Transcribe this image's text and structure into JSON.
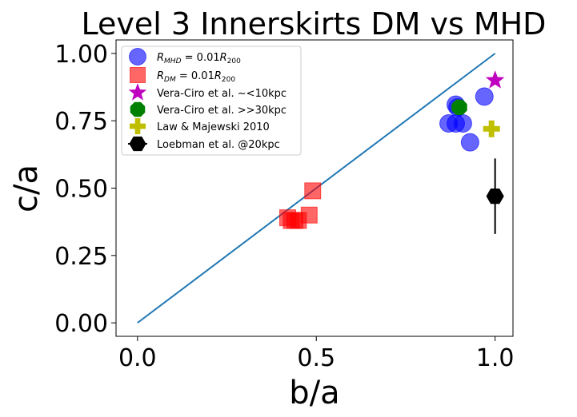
{
  "chart_data": {
    "type": "scatter",
    "title": "Level 3 Innerskirts DM vs MHD",
    "xlabel": "b/a",
    "ylabel": "c/a",
    "xlim": [
      -0.06,
      1.05
    ],
    "ylim": [
      -0.05,
      1.05
    ],
    "xticks": [
      0.0,
      0.5,
      1.0
    ],
    "xtick_labels": [
      "0.0",
      "0.5",
      "1.0"
    ],
    "yticks": [
      0.0,
      0.25,
      0.5,
      0.75,
      1.0
    ],
    "ytick_labels": [
      "0.00",
      "0.25",
      "0.50",
      "0.75",
      "1.00"
    ],
    "grid": false,
    "legend_position": "top-left",
    "reference_line": {
      "x": [
        0.0,
        1.0
      ],
      "y": [
        0.0,
        1.0
      ],
      "color": "#1f77b4"
    },
    "series": [
      {
        "name": "R_MHD = 0.01R_200",
        "legend_text": "MHD",
        "marker": "circle",
        "color": "#0000ff",
        "x": [
          0.97,
          0.89,
          0.87,
          0.89,
          0.91,
          0.93,
          0.895
        ],
        "y": [
          0.84,
          0.81,
          0.74,
          0.74,
          0.74,
          0.67,
          0.8
        ]
      },
      {
        "name": "R_DM = 0.01R_200",
        "legend_text": "DM",
        "marker": "square",
        "color": "#ff0000",
        "x": [
          0.49,
          0.42,
          0.43,
          0.44,
          0.45,
          0.48
        ],
        "y": [
          0.49,
          0.39,
          0.38,
          0.38,
          0.38,
          0.4
        ]
      },
      {
        "name": "Vera-Ciro et al. ~<10kpc",
        "legend_text": "Vera-Ciro et al. ~<10kpc",
        "marker": "star",
        "color": "#bf00bf",
        "x": [
          1.0
        ],
        "y": [
          0.9
        ]
      },
      {
        "name": "Vera-Ciro et al. >>30kpc",
        "legend_text": "Vera-Ciro et al. >>30kpc",
        "marker": "octagon",
        "color": "#008000",
        "x": [
          0.9
        ],
        "y": [
          0.8
        ]
      },
      {
        "name": "Law & Majewski 2010",
        "legend_text": "Law & Majewski 2010",
        "marker": "plus",
        "color": "#bfbf00",
        "x": [
          0.99
        ],
        "y": [
          0.72
        ]
      },
      {
        "name": "Loebman et al. @20kpc",
        "legend_text": "Loebman et al. @20kpc",
        "marker": "hexagon",
        "color": "#000000",
        "x": [
          1.0
        ],
        "y": [
          0.47
        ],
        "yerr": [
          0.14
        ]
      }
    ]
  }
}
